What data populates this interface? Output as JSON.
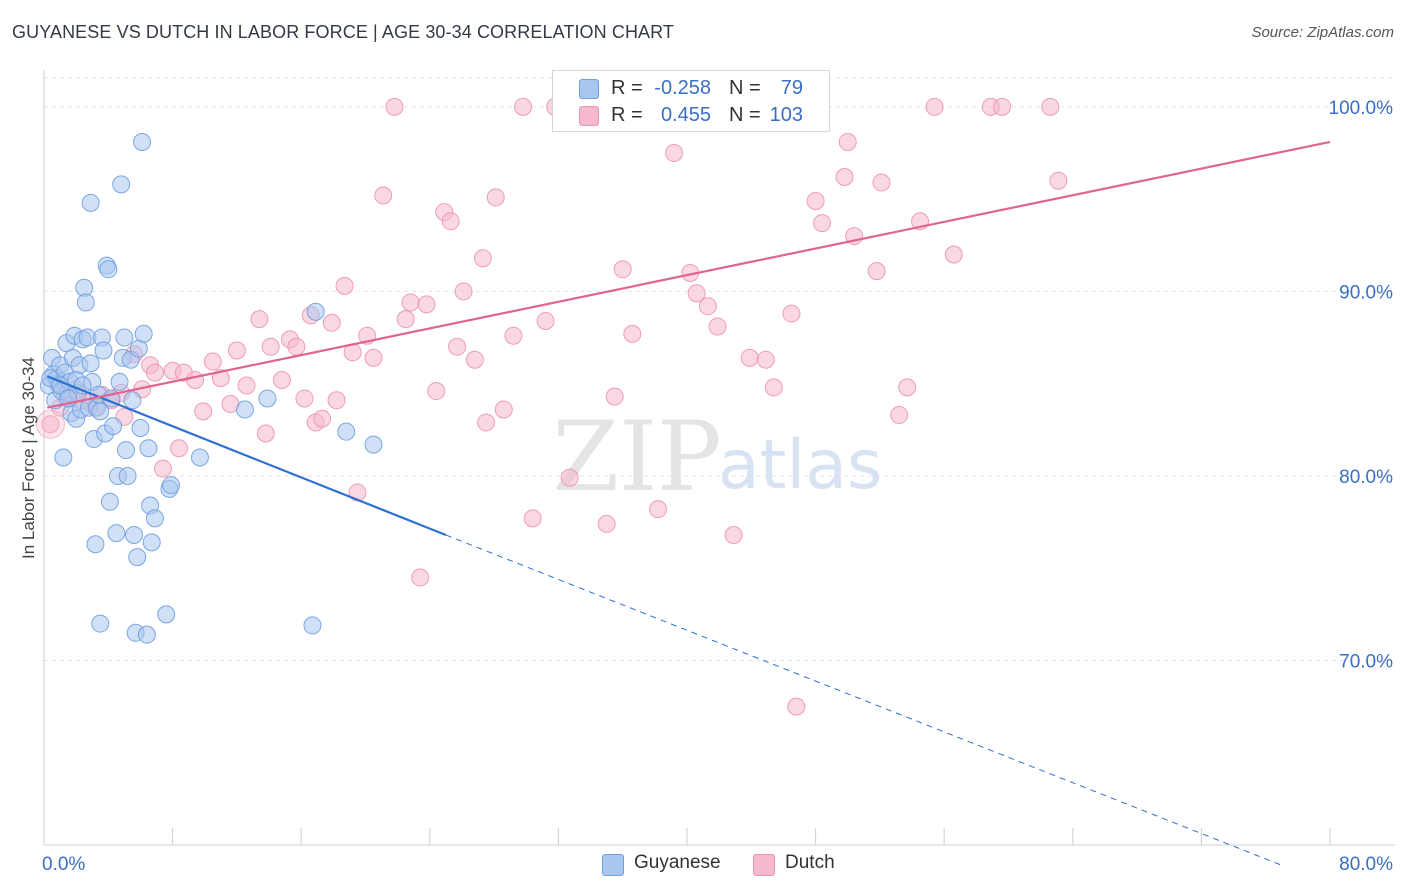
{
  "title": "GUYANESE VS DUTCH IN LABOR FORCE | AGE 30-34 CORRELATION CHART",
  "source": "Source: ZipAtlas.com",
  "watermark": {
    "zip": "ZIP",
    "atlas": "atlas"
  },
  "legend": {
    "r_label": "R =",
    "n_label": "N =",
    "rows": [
      {
        "name": "Guyanese",
        "r": "-0.258",
        "n": "79",
        "color": "#a9c6ef"
      },
      {
        "name": "Dutch",
        "r": "0.455",
        "n": "103",
        "color": "#f6b8cc"
      }
    ]
  },
  "colors": {
    "guyanese_fill": "#a9c6ef",
    "guyanese_stroke": "#6f9fe0",
    "guyanese_line": "#2f6fd0",
    "dutch_fill": "#f6b8cc",
    "dutch_stroke": "#ee93b0",
    "dutch_line": "#e0648e",
    "axis_text": "#3a6fc4",
    "grid": "#e5e5e5"
  },
  "chart_data": {
    "type": "scatter",
    "title": "GUYANESE VS DUTCH IN LABOR FORCE | AGE 30-34 CORRELATION CHART",
    "xlabel": "",
    "ylabel": "In Labor Force | Age 30-34",
    "xlim": [
      0,
      80
    ],
    "ylim": [
      60.0,
      102.0
    ],
    "x_tick_labels": [
      "0.0%",
      "80.0%"
    ],
    "y_ticks": [
      70,
      80,
      90,
      100
    ],
    "y_tick_labels": [
      "70.0%",
      "80.0%",
      "90.0%",
      "100.0%"
    ],
    "grid": true,
    "legend_position": "top-center",
    "series": [
      {
        "name": "Guyanese",
        "trend": {
          "x": [
            0.2,
            25.0
          ],
          "y": [
            85.4,
            76.8
          ],
          "dashed_to": [
            77.0,
            58.9
          ]
        },
        "points": [
          [
            0.3,
            84.9
          ],
          [
            0.5,
            86.4
          ],
          [
            0.6,
            85.5
          ],
          [
            0.7,
            84.1
          ],
          [
            0.8,
            85.3
          ],
          [
            0.9,
            85.0
          ],
          [
            1.0,
            86.0
          ],
          [
            1.1,
            84.6
          ],
          [
            1.2,
            81.0
          ],
          [
            1.3,
            85.6
          ],
          [
            1.4,
            87.2
          ],
          [
            1.5,
            84.5
          ],
          [
            1.6,
            85.1
          ],
          [
            1.7,
            83.4
          ],
          [
            1.8,
            86.4
          ],
          [
            1.9,
            87.6
          ],
          [
            2.0,
            83.1
          ],
          [
            2.1,
            84.5
          ],
          [
            2.2,
            86.0
          ],
          [
            2.3,
            83.6
          ],
          [
            2.4,
            87.4
          ],
          [
            2.5,
            90.2
          ],
          [
            2.6,
            89.4
          ],
          [
            2.7,
            87.5
          ],
          [
            2.8,
            83.7
          ],
          [
            2.9,
            94.8
          ],
          [
            3.0,
            85.1
          ],
          [
            3.1,
            82.0
          ],
          [
            3.2,
            76.3
          ],
          [
            3.3,
            83.7
          ],
          [
            3.4,
            84.4
          ],
          [
            3.5,
            72.0
          ],
          [
            3.6,
            87.5
          ],
          [
            3.7,
            86.8
          ],
          [
            3.8,
            82.3
          ],
          [
            3.9,
            91.4
          ],
          [
            4.0,
            91.2
          ],
          [
            4.1,
            78.6
          ],
          [
            4.2,
            84.2
          ],
          [
            4.3,
            82.7
          ],
          [
            4.5,
            76.9
          ],
          [
            4.6,
            80.0
          ],
          [
            4.7,
            85.1
          ],
          [
            4.8,
            95.8
          ],
          [
            4.9,
            86.4
          ],
          [
            5.0,
            87.5
          ],
          [
            5.1,
            81.4
          ],
          [
            5.2,
            80.0
          ],
          [
            5.4,
            86.3
          ],
          [
            5.5,
            84.1
          ],
          [
            5.6,
            76.8
          ],
          [
            5.7,
            71.5
          ],
          [
            5.8,
            75.6
          ],
          [
            5.9,
            86.9
          ],
          [
            6.0,
            82.6
          ],
          [
            6.1,
            98.1
          ],
          [
            6.2,
            87.7
          ],
          [
            6.4,
            71.4
          ],
          [
            6.5,
            81.5
          ],
          [
            6.6,
            78.4
          ],
          [
            6.7,
            76.4
          ],
          [
            6.9,
            77.7
          ],
          [
            7.6,
            72.5
          ],
          [
            7.8,
            79.3
          ],
          [
            7.9,
            79.5
          ],
          [
            9.7,
            81.0
          ],
          [
            12.5,
            83.6
          ],
          [
            13.9,
            84.2
          ],
          [
            16.7,
            71.9
          ],
          [
            16.9,
            88.9
          ],
          [
            18.8,
            82.4
          ],
          [
            20.5,
            81.7
          ],
          [
            0.4,
            85.3
          ],
          [
            1.0,
            84.9
          ],
          [
            2.0,
            85.2
          ],
          [
            2.9,
            86.1
          ],
          [
            3.5,
            83.5
          ],
          [
            1.5,
            84.2
          ],
          [
            2.4,
            84.9
          ]
        ]
      },
      {
        "name": "Dutch",
        "trend": {
          "x": [
            0.2,
            80.0
          ],
          "y": [
            83.7,
            98.1
          ]
        },
        "points": [
          [
            0.4,
            82.8
          ],
          [
            1.0,
            83.7
          ],
          [
            1.3,
            84.4
          ],
          [
            1.6,
            84.2
          ],
          [
            1.8,
            84.3
          ],
          [
            2.0,
            84.7
          ],
          [
            2.4,
            84.1
          ],
          [
            2.8,
            84.0
          ],
          [
            3.2,
            83.7
          ],
          [
            3.6,
            84.4
          ],
          [
            4.2,
            84.1
          ],
          [
            4.8,
            84.5
          ],
          [
            5.0,
            83.2
          ],
          [
            5.6,
            86.6
          ],
          [
            6.1,
            84.7
          ],
          [
            6.6,
            86.0
          ],
          [
            6.9,
            85.6
          ],
          [
            7.4,
            80.4
          ],
          [
            8.0,
            85.7
          ],
          [
            8.4,
            81.5
          ],
          [
            8.7,
            85.6
          ],
          [
            9.4,
            85.2
          ],
          [
            9.9,
            83.5
          ],
          [
            10.5,
            86.2
          ],
          [
            11.0,
            85.3
          ],
          [
            11.6,
            83.9
          ],
          [
            12.0,
            86.8
          ],
          [
            12.6,
            84.9
          ],
          [
            13.4,
            88.5
          ],
          [
            13.8,
            82.3
          ],
          [
            14.1,
            87.0
          ],
          [
            14.8,
            85.2
          ],
          [
            15.3,
            87.4
          ],
          [
            15.7,
            87.0
          ],
          [
            16.2,
            84.2
          ],
          [
            16.6,
            88.7
          ],
          [
            16.9,
            82.9
          ],
          [
            17.3,
            83.1
          ],
          [
            17.9,
            88.3
          ],
          [
            18.2,
            84.1
          ],
          [
            18.7,
            90.3
          ],
          [
            19.2,
            86.7
          ],
          [
            19.5,
            79.1
          ],
          [
            20.1,
            87.6
          ],
          [
            20.5,
            86.4
          ],
          [
            21.1,
            95.2
          ],
          [
            21.8,
            100.0
          ],
          [
            22.5,
            88.5
          ],
          [
            22.8,
            89.4
          ],
          [
            23.4,
            74.5
          ],
          [
            23.8,
            89.3
          ],
          [
            24.4,
            84.6
          ],
          [
            24.9,
            94.3
          ],
          [
            25.3,
            93.8
          ],
          [
            25.7,
            87.0
          ],
          [
            26.1,
            90.0
          ],
          [
            26.8,
            86.3
          ],
          [
            27.3,
            91.8
          ],
          [
            27.5,
            82.9
          ],
          [
            28.1,
            95.1
          ],
          [
            28.6,
            83.6
          ],
          [
            29.2,
            87.6
          ],
          [
            29.8,
            100.0
          ],
          [
            30.4,
            77.7
          ],
          [
            31.2,
            88.4
          ],
          [
            31.8,
            100.0
          ],
          [
            32.7,
            79.9
          ],
          [
            33.8,
            100.0
          ],
          [
            35.0,
            77.4
          ],
          [
            35.5,
            84.3
          ],
          [
            36.0,
            91.2
          ],
          [
            36.6,
            87.7
          ],
          [
            37.4,
            100.0
          ],
          [
            38.2,
            78.2
          ],
          [
            39.2,
            97.5
          ],
          [
            40.2,
            91.0
          ],
          [
            40.6,
            89.9
          ],
          [
            41.3,
            89.2
          ],
          [
            41.9,
            88.1
          ],
          [
            42.9,
            76.8
          ],
          [
            43.5,
            100.0
          ],
          [
            43.9,
            86.4
          ],
          [
            44.9,
            86.3
          ],
          [
            45.4,
            84.8
          ],
          [
            46.5,
            88.8
          ],
          [
            46.8,
            67.5
          ],
          [
            47.4,
            100.0
          ],
          [
            48.0,
            94.9
          ],
          [
            48.4,
            93.7
          ],
          [
            50.0,
            98.1
          ],
          [
            50.4,
            93.0
          ],
          [
            51.8,
            91.1
          ],
          [
            52.1,
            95.9
          ],
          [
            53.2,
            83.3
          ],
          [
            53.7,
            84.8
          ],
          [
            54.5,
            93.8
          ],
          [
            55.4,
            100.0
          ],
          [
            56.6,
            92.0
          ],
          [
            58.9,
            100.0
          ],
          [
            59.6,
            100.0
          ],
          [
            62.6,
            100.0
          ],
          [
            63.1,
            96.0
          ],
          [
            49.8,
            96.2
          ]
        ]
      }
    ]
  }
}
